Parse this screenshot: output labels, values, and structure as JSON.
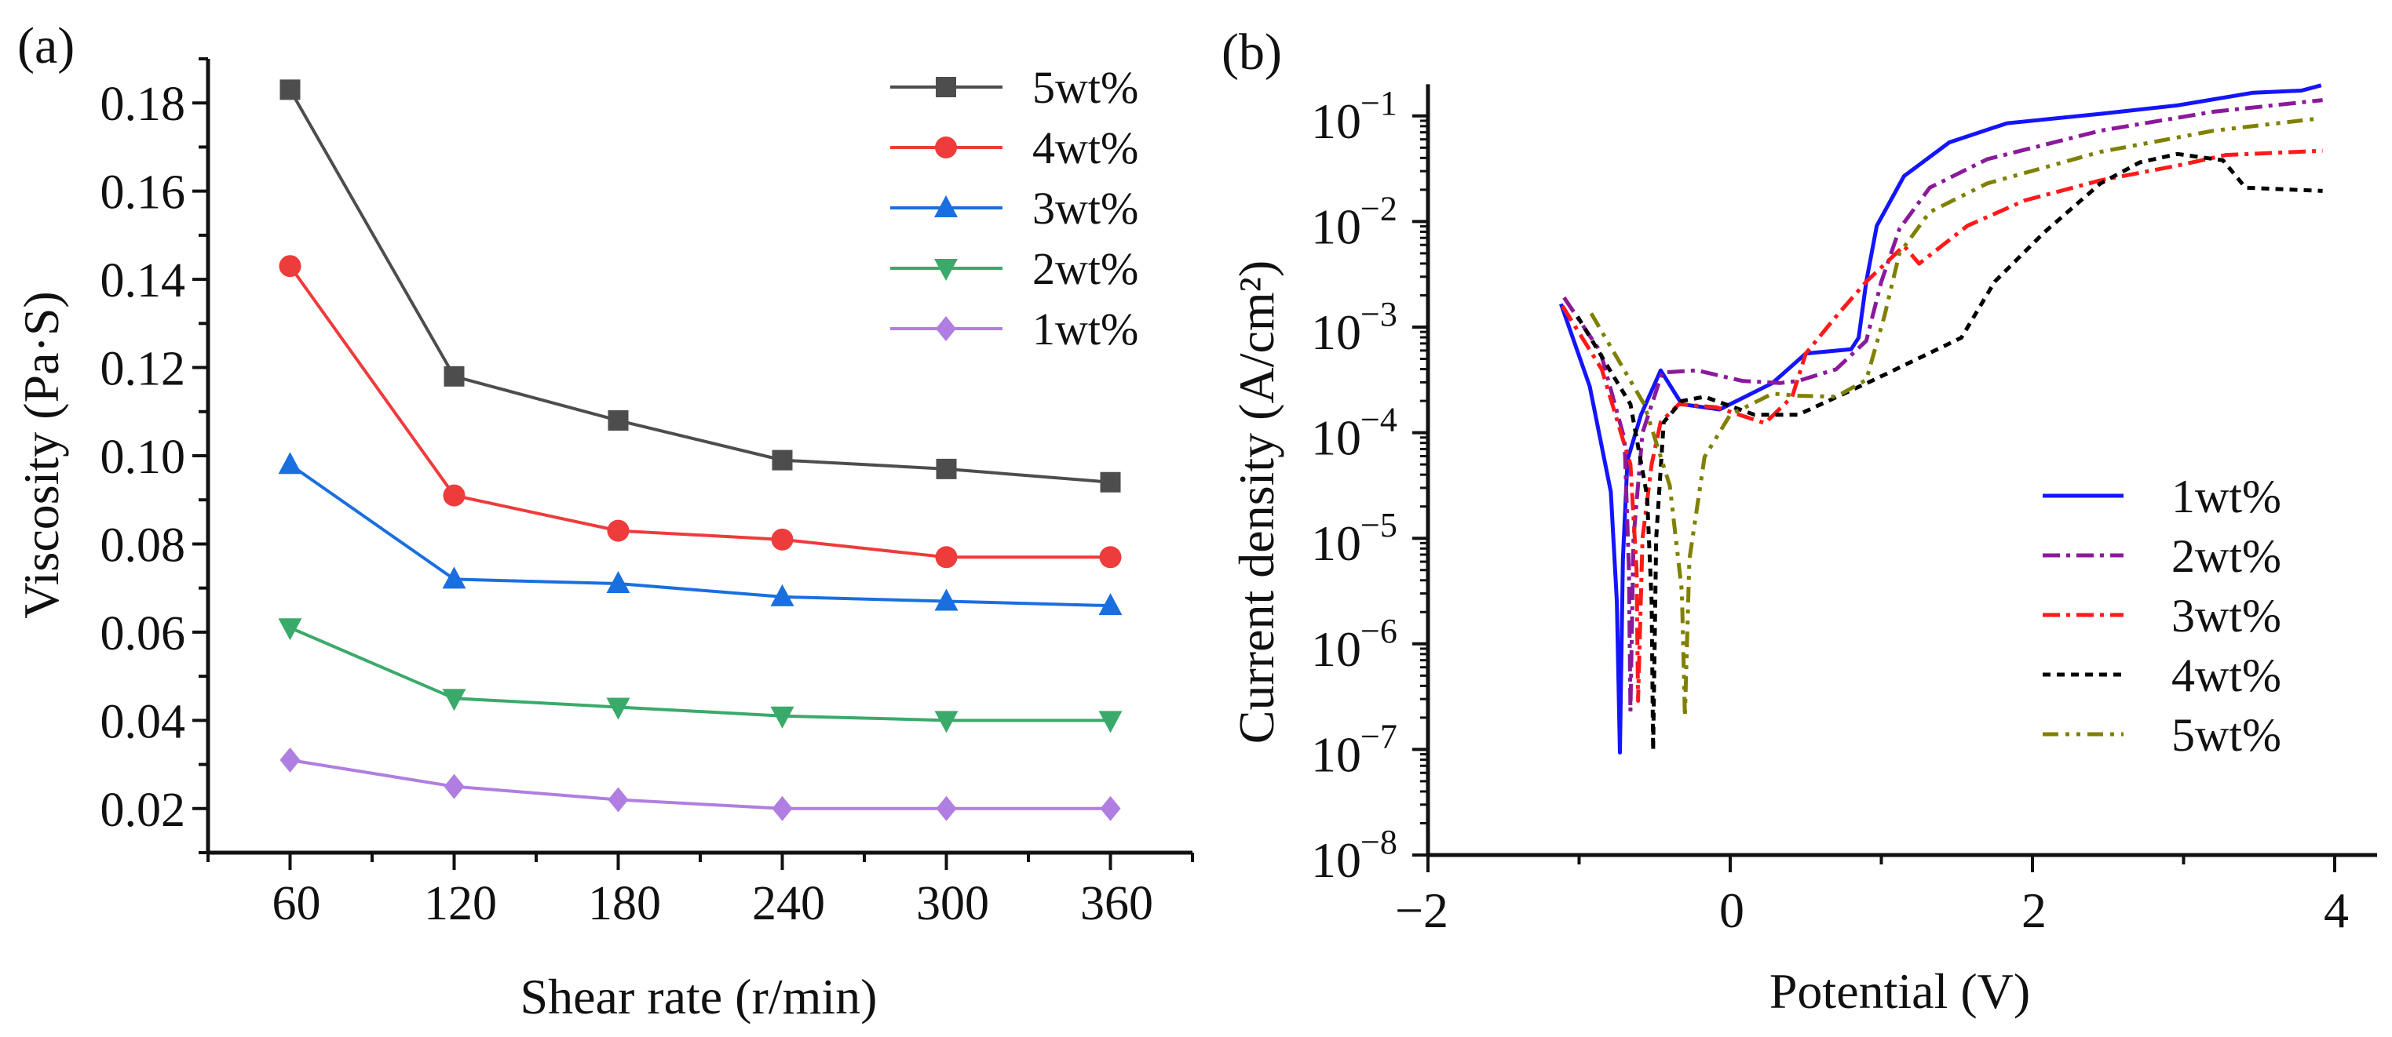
{
  "chart_data": [
    {
      "panel_label": "(a)",
      "type": "line",
      "xlabel": "Shear rate (r/min)",
      "ylabel": "Viscosity (Pa·S)",
      "x": [
        60,
        120,
        180,
        240,
        300,
        360
      ],
      "x_ticks": [
        60,
        120,
        180,
        240,
        300,
        360
      ],
      "x_tick_labels": [
        "60",
        "120",
        "180",
        "240",
        "300",
        "360"
      ],
      "y_ticks": [
        0.02,
        0.04,
        0.06,
        0.08,
        0.1,
        0.12,
        0.14,
        0.16,
        0.18
      ],
      "y_tick_labels": [
        "0.02",
        "0.04",
        "0.06",
        "0.08",
        "0.10",
        "0.12",
        "0.14",
        "0.16",
        "0.18"
      ],
      "xlim": [
        30,
        390
      ],
      "ylim": [
        0.01,
        0.19
      ],
      "grid": false,
      "legend_position": "top-right",
      "series": [
        {
          "name": "5wt%",
          "color": "#4d4d4d",
          "marker": "square",
          "values": [
            0.183,
            0.118,
            0.108,
            0.099,
            0.097,
            0.094
          ]
        },
        {
          "name": "4wt%",
          "color": "#ee3b3b",
          "marker": "circle",
          "values": [
            0.143,
            0.091,
            0.083,
            0.081,
            0.077,
            0.077
          ]
        },
        {
          "name": "3wt%",
          "color": "#1a6fe0",
          "marker": "triangle-up",
          "values": [
            0.098,
            0.072,
            0.071,
            0.068,
            0.067,
            0.066
          ]
        },
        {
          "name": "2wt%",
          "color": "#3aaa6a",
          "marker": "triangle-down",
          "values": [
            0.061,
            0.045,
            0.043,
            0.041,
            0.04,
            0.04
          ]
        },
        {
          "name": "1wt%",
          "color": "#b07ee0",
          "marker": "diamond",
          "values": [
            0.031,
            0.025,
            0.022,
            0.02,
            0.02,
            0.02
          ]
        }
      ]
    },
    {
      "panel_label": "(b)",
      "type": "line",
      "xlabel": "Potential (V)",
      "ylabel": "Current density (A/cm²)",
      "y_scale": "log",
      "xlim": [
        -2,
        4.3
      ],
      "ylim_log10": [
        -8,
        -0.7
      ],
      "x_ticks": [
        -2,
        0,
        2,
        4
      ],
      "x_tick_labels": [
        "−2",
        "0",
        "2",
        "4"
      ],
      "y_tick_base": "10",
      "y_tick_exponents": [
        "−8",
        "−7",
        "−6",
        "−5",
        "−4",
        "−3",
        "−2",
        "−1"
      ],
      "grid": false,
      "legend_position": "bottom-right",
      "point_format": "[potential V, log10 current density]",
      "series": [
        {
          "name": "1wt%",
          "color": "#1414ff",
          "dash": "solid",
          "points": [
            [
              -1.12,
              -2.78
            ],
            [
              -0.93,
              -3.56
            ],
            [
              -0.79,
              -4.56
            ],
            [
              -0.75,
              -5.6
            ],
            [
              -0.73,
              -7.03
            ],
            [
              -0.71,
              -5.2
            ],
            [
              -0.68,
              -4.26
            ],
            [
              -0.59,
              -3.83
            ],
            [
              -0.46,
              -3.41
            ],
            [
              -0.32,
              -3.73
            ],
            [
              -0.07,
              -3.78
            ],
            [
              0.28,
              -3.53
            ],
            [
              0.5,
              -3.25
            ],
            [
              0.8,
              -3.21
            ],
            [
              0.85,
              -3.1
            ],
            [
              0.9,
              -2.57
            ],
            [
              0.97,
              -2.04
            ],
            [
              1.15,
              -1.57
            ],
            [
              1.45,
              -1.25
            ],
            [
              1.83,
              -1.07
            ],
            [
              2.45,
              -0.98
            ],
            [
              2.96,
              -0.9
            ],
            [
              3.46,
              -0.78
            ],
            [
              3.78,
              -0.76
            ],
            [
              3.91,
              -0.71
            ]
          ]
        },
        {
          "name": "2wt%",
          "color": "#8b1a9b",
          "dash": "dash-dot",
          "points": [
            [
              -1.1,
              -2.72
            ],
            [
              -0.86,
              -3.23
            ],
            [
              -0.7,
              -4.06
            ],
            [
              -0.67,
              -5.3
            ],
            [
              -0.66,
              -6.64
            ],
            [
              -0.64,
              -5.0
            ],
            [
              -0.58,
              -4.0
            ],
            [
              -0.45,
              -3.43
            ],
            [
              -0.22,
              -3.41
            ],
            [
              0.08,
              -3.51
            ],
            [
              0.33,
              -3.53
            ],
            [
              0.45,
              -3.51
            ],
            [
              0.7,
              -3.4
            ],
            [
              0.9,
              -3.13
            ],
            [
              1.0,
              -2.57
            ],
            [
              1.12,
              -2.07
            ],
            [
              1.32,
              -1.68
            ],
            [
              1.7,
              -1.41
            ],
            [
              2.45,
              -1.14
            ],
            [
              3.2,
              -0.96
            ],
            [
              3.92,
              -0.85
            ]
          ]
        },
        {
          "name": "3wt%",
          "color": "#ff1a1a",
          "dash": "dash-dot",
          "points": [
            [
              -1.11,
              -2.8
            ],
            [
              -0.85,
              -3.4
            ],
            [
              -0.66,
              -4.3
            ],
            [
              -0.62,
              -5.3
            ],
            [
              -0.61,
              -6.54
            ],
            [
              -0.58,
              -5.0
            ],
            [
              -0.52,
              -4.3
            ],
            [
              -0.46,
              -3.9
            ],
            [
              -0.34,
              -3.73
            ],
            [
              -0.09,
              -3.76
            ],
            [
              0.23,
              -3.91
            ],
            [
              0.41,
              -3.66
            ],
            [
              0.5,
              -3.25
            ],
            [
              0.7,
              -2.9
            ],
            [
              0.9,
              -2.57
            ],
            [
              1.15,
              -2.23
            ],
            [
              1.25,
              -2.4
            ],
            [
              1.57,
              -2.04
            ],
            [
              1.95,
              -1.8
            ],
            [
              2.45,
              -1.61
            ],
            [
              2.96,
              -1.47
            ],
            [
              3.28,
              -1.37
            ],
            [
              3.92,
              -1.33
            ]
          ]
        },
        {
          "name": "4wt%",
          "color": "#000000",
          "dash": "short-dash",
          "points": [
            [
              -1.01,
              -2.9
            ],
            [
              -0.66,
              -3.73
            ],
            [
              -0.55,
              -4.6
            ],
            [
              -0.52,
              -5.6
            ],
            [
              -0.51,
              -7.01
            ],
            [
              -0.49,
              -5.0
            ],
            [
              -0.44,
              -3.9
            ],
            [
              -0.32,
              -3.7
            ],
            [
              -0.17,
              -3.66
            ],
            [
              0.16,
              -3.83
            ],
            [
              0.45,
              -3.83
            ],
            [
              0.95,
              -3.5
            ],
            [
              1.53,
              -3.1
            ],
            [
              1.75,
              -2.57
            ],
            [
              2.08,
              -2.1
            ],
            [
              2.45,
              -1.64
            ],
            [
              2.71,
              -1.44
            ],
            [
              2.96,
              -1.36
            ],
            [
              3.26,
              -1.42
            ],
            [
              3.41,
              -1.68
            ],
            [
              3.92,
              -1.71
            ]
          ]
        },
        {
          "name": "5wt%",
          "color": "#808000",
          "dash": "dash-dot-dot",
          "points": [
            [
              -0.92,
              -2.87
            ],
            [
              -0.57,
              -3.73
            ],
            [
              -0.4,
              -4.5
            ],
            [
              -0.32,
              -5.5
            ],
            [
              -0.3,
              -6.69
            ],
            [
              -0.27,
              -5.2
            ],
            [
              -0.17,
              -4.23
            ],
            [
              0.0,
              -3.83
            ],
            [
              0.28,
              -3.63
            ],
            [
              0.45,
              -3.65
            ],
            [
              0.7,
              -3.66
            ],
            [
              0.9,
              -3.5
            ],
            [
              1.02,
              -2.9
            ],
            [
              1.12,
              -2.3
            ],
            [
              1.32,
              -1.91
            ],
            [
              1.7,
              -1.64
            ],
            [
              2.45,
              -1.34
            ],
            [
              3.2,
              -1.14
            ],
            [
              3.86,
              -1.03
            ]
          ]
        }
      ]
    }
  ]
}
